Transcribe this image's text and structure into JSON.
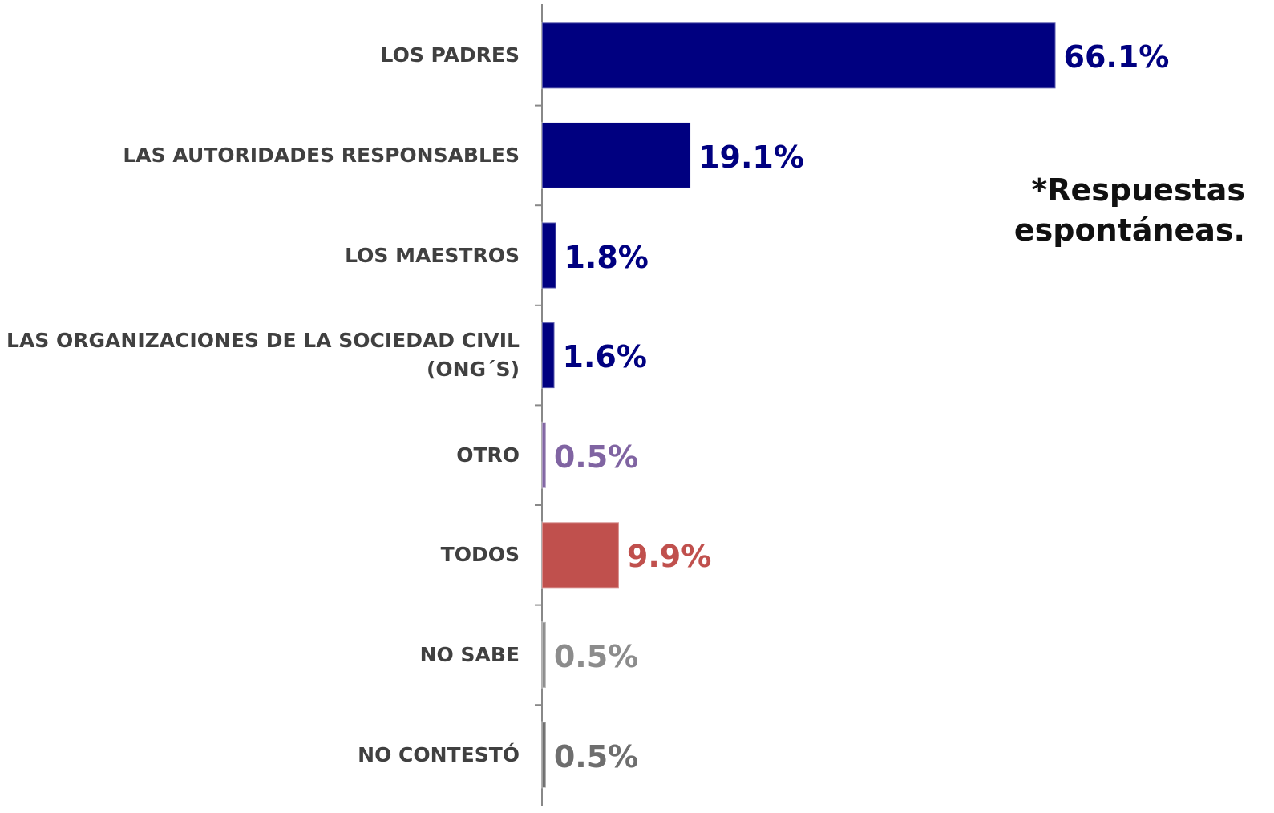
{
  "chart_data": {
    "type": "bar",
    "orientation": "horizontal",
    "categories": [
      "LOS PADRES",
      "LAS AUTORIDADES RESPONSABLES",
      "LOS MAESTROS",
      "LAS ORGANIZACIONES DE LA SOCIEDAD CIVIL (ONG´S)",
      "OTRO",
      "TODOS",
      "NO SABE",
      "NO CONTESTÓ"
    ],
    "values": [
      66.1,
      19.1,
      1.8,
      1.6,
      0.5,
      9.9,
      0.5,
      0.5
    ],
    "value_labels": [
      "66.1%",
      "19.1%",
      "1.8%",
      "1.6%",
      "0.5%",
      "9.9%",
      "0.5%",
      "0.5%"
    ],
    "colors": [
      "#000080",
      "#000080",
      "#000080",
      "#000080",
      "#8064a2",
      "#c0504d",
      "#8c8c8c",
      "#6e6e6e"
    ],
    "annotation": "*Respuestas espontáneas."
  }
}
